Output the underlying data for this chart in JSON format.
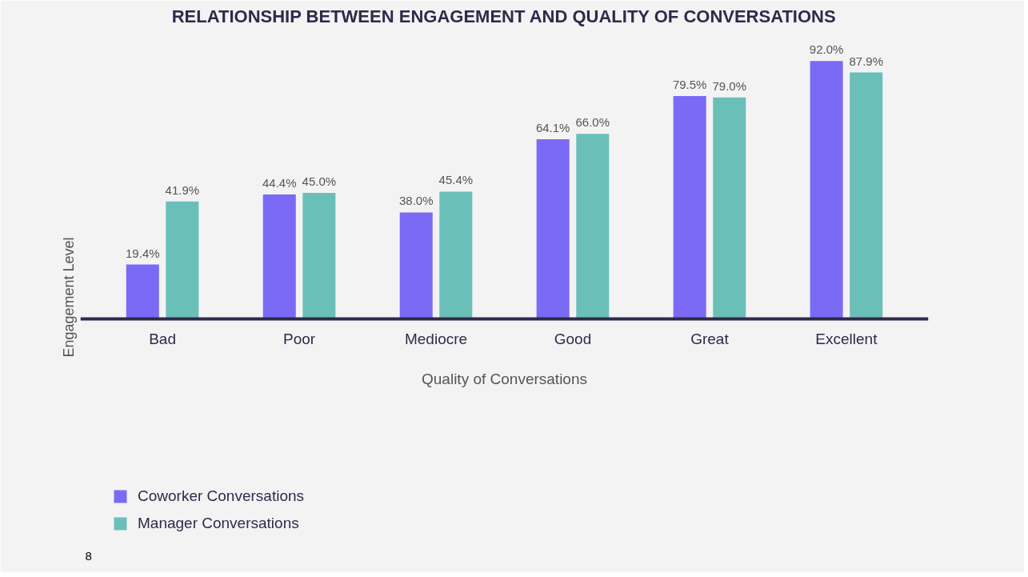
{
  "chart_data": {
    "type": "bar",
    "title": "RELATIONSHIP BETWEEN ENGAGEMENT AND QUALITY OF CONVERSATIONS",
    "xlabel": "Quality of Conversations",
    "ylabel": "Engagement Level",
    "categories": [
      "Bad",
      "Poor",
      "Mediocre",
      "Good",
      "Great",
      "Excellent"
    ],
    "series": [
      {
        "name": "Coworker Conversations",
        "color": "#7b6af5",
        "values": [
          19.4,
          44.4,
          38.0,
          64.1,
          79.5,
          92.0
        ],
        "value_labels": [
          "19.4%",
          "44.4%",
          "38.0%",
          "64.1%",
          "79.5%",
          "92.0%"
        ]
      },
      {
        "name": "Manager Conversations",
        "color": "#6bbfb9",
        "values": [
          41.9,
          45.0,
          45.4,
          66.0,
          79.0,
          87.9
        ],
        "value_labels": [
          "41.9%",
          "45.0%",
          "45.4%",
          "66.0%",
          "79.0%",
          "87.9%"
        ]
      }
    ],
    "legend": "bottom left",
    "annotations": [
      "8"
    ]
  }
}
